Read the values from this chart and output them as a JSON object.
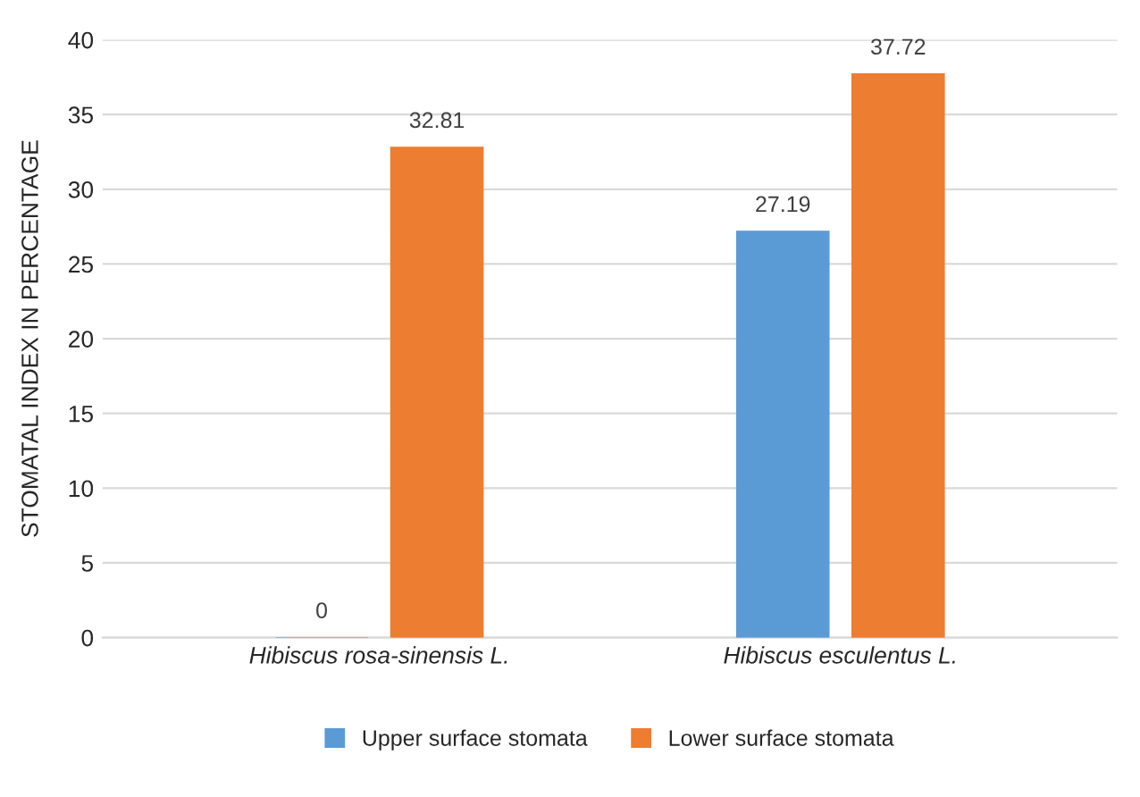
{
  "chart_data": {
    "type": "bar",
    "ylabel": "STOMATAL INDEX IN PERCENTAGE",
    "categories": [
      "Hibiscus rosa-sinensis L.",
      "Hibiscus esculentus L."
    ],
    "series": [
      {
        "name": "Upper surface stomata",
        "color": "#5b9bd5",
        "values": [
          0,
          27.19
        ]
      },
      {
        "name": "Lower surface stomata",
        "color": "#ed7d31",
        "values": [
          32.81,
          37.72
        ]
      }
    ],
    "ylim": [
      0,
      40
    ],
    "yticks": [
      0,
      5,
      10,
      15,
      20,
      25,
      30,
      35,
      40
    ],
    "grid": "y",
    "legend": "bottom",
    "data_labels": true
  }
}
